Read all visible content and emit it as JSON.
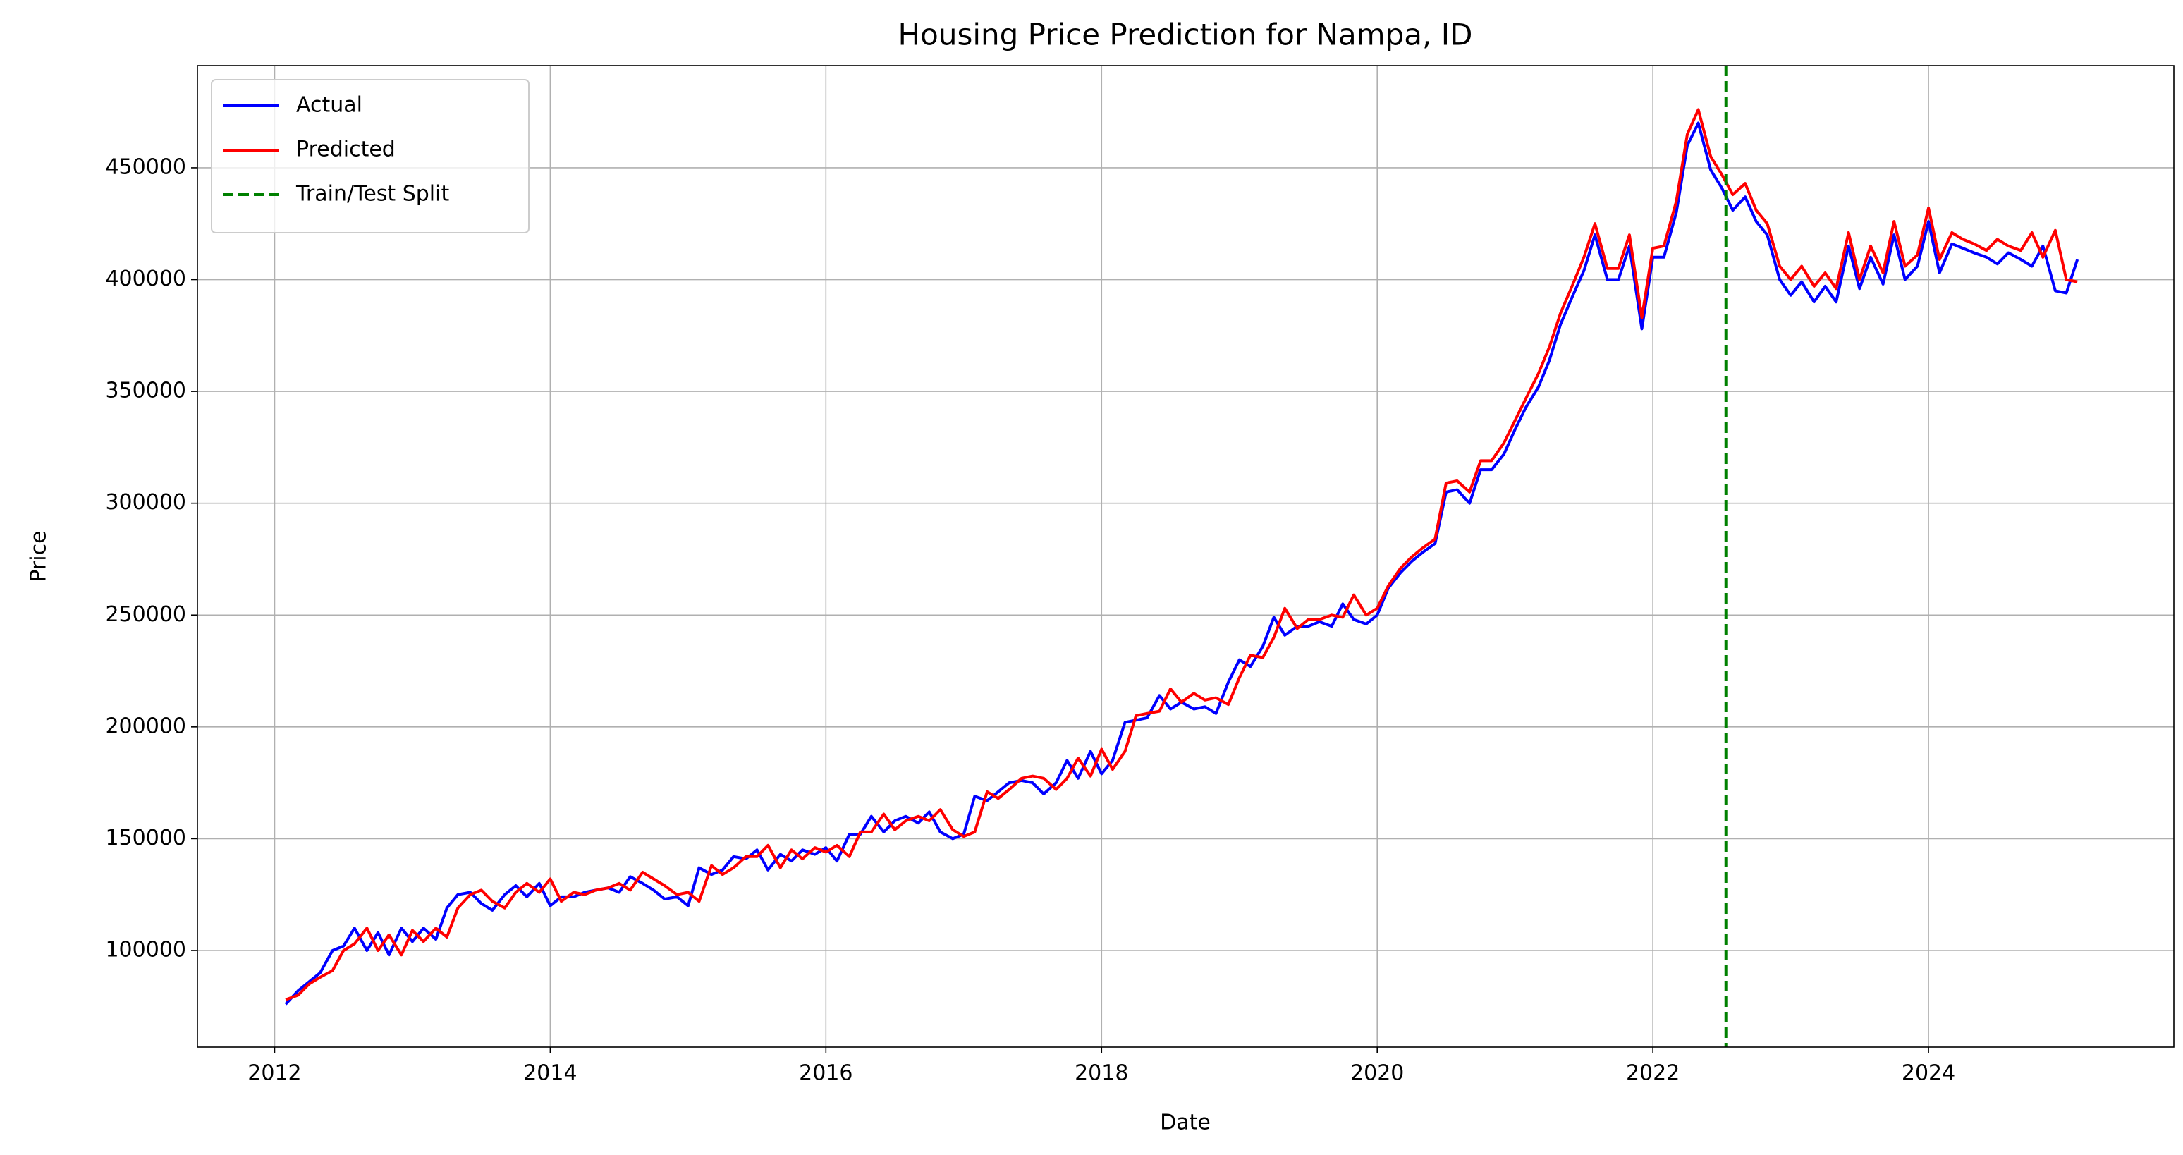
{
  "chart_data": {
    "type": "line",
    "title": "Housing Price Prediction for Nampa, ID",
    "x_label": "Date",
    "y_label": "Price",
    "x": [
      2012.08,
      2012.17,
      2012.25,
      2012.33,
      2012.42,
      2012.5,
      2012.58,
      2012.67,
      2012.75,
      2012.83,
      2012.92,
      2013.0,
      2013.08,
      2013.17,
      2013.25,
      2013.33,
      2013.42,
      2013.5,
      2013.58,
      2013.67,
      2013.75,
      2013.83,
      2013.92,
      2014.0,
      2014.08,
      2014.17,
      2014.25,
      2014.33,
      2014.42,
      2014.5,
      2014.58,
      2014.67,
      2014.75,
      2014.83,
      2014.92,
      2015.0,
      2015.08,
      2015.17,
      2015.25,
      2015.33,
      2015.42,
      2015.5,
      2015.58,
      2015.67,
      2015.75,
      2015.83,
      2015.92,
      2016.0,
      2016.08,
      2016.17,
      2016.25,
      2016.33,
      2016.42,
      2016.5,
      2016.58,
      2016.67,
      2016.75,
      2016.83,
      2016.92,
      2017.0,
      2017.08,
      2017.17,
      2017.25,
      2017.33,
      2017.42,
      2017.5,
      2017.58,
      2017.67,
      2017.75,
      2017.83,
      2017.92,
      2018.0,
      2018.08,
      2018.17,
      2018.25,
      2018.33,
      2018.42,
      2018.5,
      2018.58,
      2018.67,
      2018.75,
      2018.83,
      2018.92,
      2019.0,
      2019.08,
      2019.17,
      2019.25,
      2019.33,
      2019.42,
      2019.5,
      2019.58,
      2019.67,
      2019.75,
      2019.83,
      2019.92,
      2020.0,
      2020.08,
      2020.17,
      2020.25,
      2020.33,
      2020.42,
      2020.5,
      2020.58,
      2020.67,
      2020.75,
      2020.83,
      2020.92,
      2021.0,
      2021.08,
      2021.17,
      2021.25,
      2021.33,
      2021.42,
      2021.5,
      2021.58,
      2021.67,
      2021.75,
      2021.83,
      2021.92,
      2022.0,
      2022.08,
      2022.17,
      2022.25,
      2022.33,
      2022.42,
      2022.5,
      2022.58,
      2022.67,
      2022.75,
      2022.83,
      2022.92,
      2023.0,
      2023.08,
      2023.17,
      2023.25,
      2023.33,
      2023.42,
      2023.5,
      2023.58,
      2023.67,
      2023.75,
      2023.83,
      2023.92,
      2024.0,
      2024.08,
      2024.17,
      2024.25,
      2024.33,
      2024.42,
      2024.5,
      2024.58,
      2024.67,
      2024.75,
      2024.83,
      2024.92,
      2025.0,
      2025.08
    ],
    "series": [
      {
        "name": "Actual",
        "color": "#0000ff",
        "values": [
          76000,
          82000,
          86000,
          90000,
          100000,
          102000,
          110000,
          100000,
          108000,
          98000,
          110000,
          104000,
          110000,
          105000,
          119000,
          125000,
          126000,
          121000,
          118000,
          125000,
          129000,
          124000,
          130000,
          120000,
          124000,
          124000,
          126000,
          127000,
          128000,
          126000,
          133000,
          130000,
          127000,
          123000,
          124000,
          120000,
          137000,
          134000,
          136000,
          142000,
          141000,
          145000,
          136000,
          143000,
          140000,
          145000,
          143000,
          146000,
          140000,
          152000,
          152000,
          160000,
          153000,
          158000,
          160000,
          157000,
          162000,
          153000,
          150000,
          152000,
          169000,
          167000,
          171000,
          175000,
          176000,
          175000,
          170000,
          175000,
          185000,
          177000,
          189000,
          179000,
          185000,
          202000,
          203000,
          204000,
          214000,
          208000,
          211000,
          208000,
          209000,
          206000,
          220000,
          230000,
          227000,
          236000,
          249000,
          241000,
          245000,
          245000,
          247000,
          245000,
          255000,
          248000,
          246000,
          250000,
          262000,
          269000,
          274000,
          278000,
          282000,
          305000,
          306000,
          300000,
          315000,
          315000,
          322000,
          333000,
          343000,
          352000,
          364000,
          380000,
          393000,
          404000,
          420000,
          400000,
          400000,
          415000,
          378000,
          410000,
          410000,
          430000,
          460000,
          470000,
          449000,
          441000,
          431000,
          437000,
          426000,
          420000,
          400000,
          393000,
          399000,
          390000,
          397000,
          390000,
          415000,
          396000,
          410000,
          398000,
          420000,
          400000,
          406000,
          426000,
          403000,
          416000,
          414000,
          412000,
          410000,
          407000,
          412000,
          409000,
          406000,
          415000,
          395000,
          394000,
          409000
        ]
      },
      {
        "name": "Predicted",
        "color": "#ff0000",
        "values": [
          78000,
          80000,
          85000,
          88000,
          91000,
          100000,
          103000,
          110000,
          100000,
          107000,
          98000,
          109000,
          104000,
          110000,
          106000,
          119000,
          125000,
          127000,
          122000,
          119000,
          126000,
          130000,
          126000,
          132000,
          122000,
          126000,
          125000,
          127000,
          128000,
          130000,
          127000,
          135000,
          132000,
          129000,
          125000,
          126000,
          122000,
          138000,
          134000,
          137000,
          142000,
          142000,
          147000,
          137000,
          145000,
          141000,
          146000,
          144000,
          147000,
          142000,
          153000,
          153000,
          161000,
          154000,
          158000,
          160000,
          158000,
          163000,
          154000,
          151000,
          153000,
          171000,
          168000,
          172000,
          177000,
          178000,
          177000,
          172000,
          177000,
          186000,
          178000,
          190000,
          181000,
          189000,
          205000,
          206000,
          207000,
          217000,
          211000,
          215000,
          212000,
          213000,
          210000,
          222000,
          232000,
          231000,
          240000,
          253000,
          244000,
          248000,
          248000,
          250000,
          249000,
          259000,
          250000,
          253000,
          263000,
          271000,
          276000,
          280000,
          284000,
          309000,
          310000,
          305000,
          319000,
          319000,
          327000,
          337000,
          347000,
          358000,
          370000,
          385000,
          398000,
          410000,
          425000,
          405000,
          405000,
          420000,
          383000,
          414000,
          415000,
          435000,
          465000,
          476000,
          455000,
          447000,
          438000,
          443000,
          431000,
          425000,
          406000,
          400000,
          406000,
          397000,
          403000,
          396000,
          421000,
          400000,
          415000,
          403000,
          426000,
          406000,
          411000,
          432000,
          409000,
          421000,
          418000,
          416000,
          413000,
          418000,
          415000,
          413000,
          421000,
          410000,
          422000,
          400000,
          399000
        ]
      }
    ],
    "vlines": [
      {
        "name": "Train/Test Split",
        "x": 2022.53,
        "color": "#008000",
        "dashed": true
      }
    ],
    "xlim": [
      2011.44,
      2025.78
    ],
    "xticks": [
      2012,
      2014,
      2016,
      2018,
      2020,
      2022,
      2024
    ],
    "ylim": [
      56800,
      495700
    ],
    "yticks": [
      100000,
      150000,
      200000,
      250000,
      300000,
      350000,
      400000,
      450000
    ],
    "grid": true,
    "legend": "upper left"
  }
}
